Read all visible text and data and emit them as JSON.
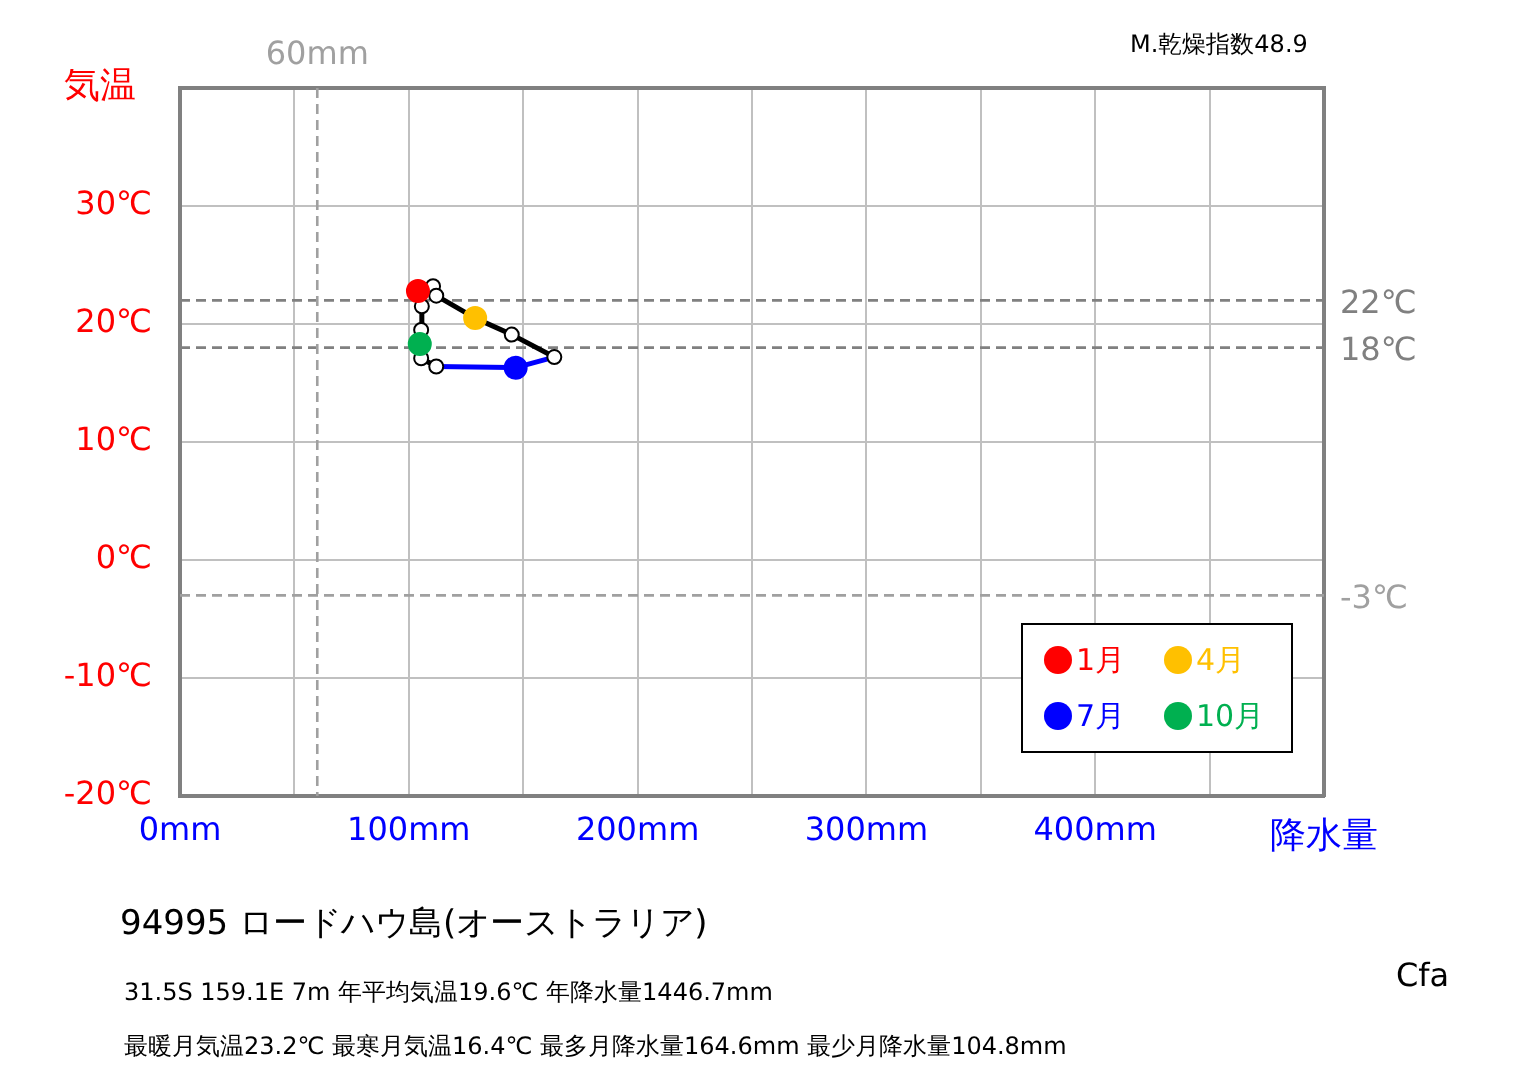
{
  "chart_data": {
    "type": "line",
    "title": "94995  ロードハウ島(オーストラリア)",
    "xlabel": "降水量",
    "ylabel": "気温",
    "annotations": [
      "M.乾燥指数48.9",
      "31.5S  159.1E 7m  年平均気温19.6℃ 年降水量1446.7mm",
      "最暖月気温23.2℃ 最寒月気温16.4℃ 最多月降水量164.6mm 最少月降水量104.8mm",
      "Cfa"
    ],
    "xlim": [
      0,
      500
    ],
    "ylim": [
      -20,
      40
    ],
    "xticks": [
      {
        "value": 0,
        "label": "0mm"
      },
      {
        "value": 50,
        "label": null
      },
      {
        "value": 100,
        "label": "100mm"
      },
      {
        "value": 150,
        "label": null
      },
      {
        "value": 200,
        "label": "200mm"
      },
      {
        "value": 250,
        "label": null
      },
      {
        "value": 300,
        "label": "300mm"
      },
      {
        "value": 350,
        "label": null
      },
      {
        "value": 400,
        "label": "400mm"
      },
      {
        "value": 450,
        "label": null
      },
      {
        "value": 500,
        "label": null
      }
    ],
    "yticks": [
      {
        "value": -20,
        "label": "-20℃"
      },
      {
        "value": -10,
        "label": "-10℃"
      },
      {
        "value": 0,
        "label": "0℃"
      },
      {
        "value": 10,
        "label": "10℃"
      },
      {
        "value": 20,
        "label": "20℃"
      },
      {
        "value": 30,
        "label": "30℃"
      },
      {
        "value": 40,
        "label": null
      }
    ],
    "grid": true,
    "legend": "bottom right",
    "ref_lines": [
      {
        "axis": "y",
        "value": 22,
        "label": "22℃",
        "color": "#808080",
        "line_style": "dashed"
      },
      {
        "axis": "y",
        "value": 18,
        "label": "18℃",
        "color": "#808080",
        "line_style": "dashed"
      },
      {
        "axis": "y",
        "value": -3,
        "label": "-3℃",
        "color": "#a0a0a0",
        "line_style": "dashed"
      },
      {
        "axis": "x",
        "value": 60,
        "label": "60mm",
        "color": "#a0a0a0",
        "line_style": "dashed"
      }
    ],
    "series": [
      {
        "color": "#000000",
        "marker": "circle",
        "x": [
          104,
          110.6,
          112,
          129,
          145,
          163.6,
          146.7,
          112,
          105.4,
          104.8,
          105.4,
          105.7,
          104
        ],
        "values": [
          22.8,
          23.2,
          22.4,
          20.5,
          19.1,
          17.2,
          null,
          16.4,
          17.1,
          18.3,
          19.5,
          21.5,
          22.8
        ]
      },
      {
        "color": "#0000ff",
        "marker": "none",
        "x": [
          163.6,
          146.7,
          112
        ],
        "values": [
          17.2,
          16.3,
          16.4
        ]
      },
      {
        "type": "scatter",
        "name": "1月",
        "color": "#ff0000",
        "x": [
          104
        ],
        "values": [
          22.8
        ]
      },
      {
        "type": "scatter",
        "name": "4月",
        "color": "#ffc000",
        "x": [
          129
        ],
        "values": [
          20.5
        ]
      },
      {
        "type": "scatter",
        "name": "7月",
        "color": "#0000ff",
        "x": [
          146.7
        ],
        "values": [
          16.3
        ]
      },
      {
        "type": "scatter",
        "name": "10月",
        "color": "#00b050",
        "x": [
          104.8
        ],
        "values": [
          18.3
        ]
      }
    ]
  }
}
